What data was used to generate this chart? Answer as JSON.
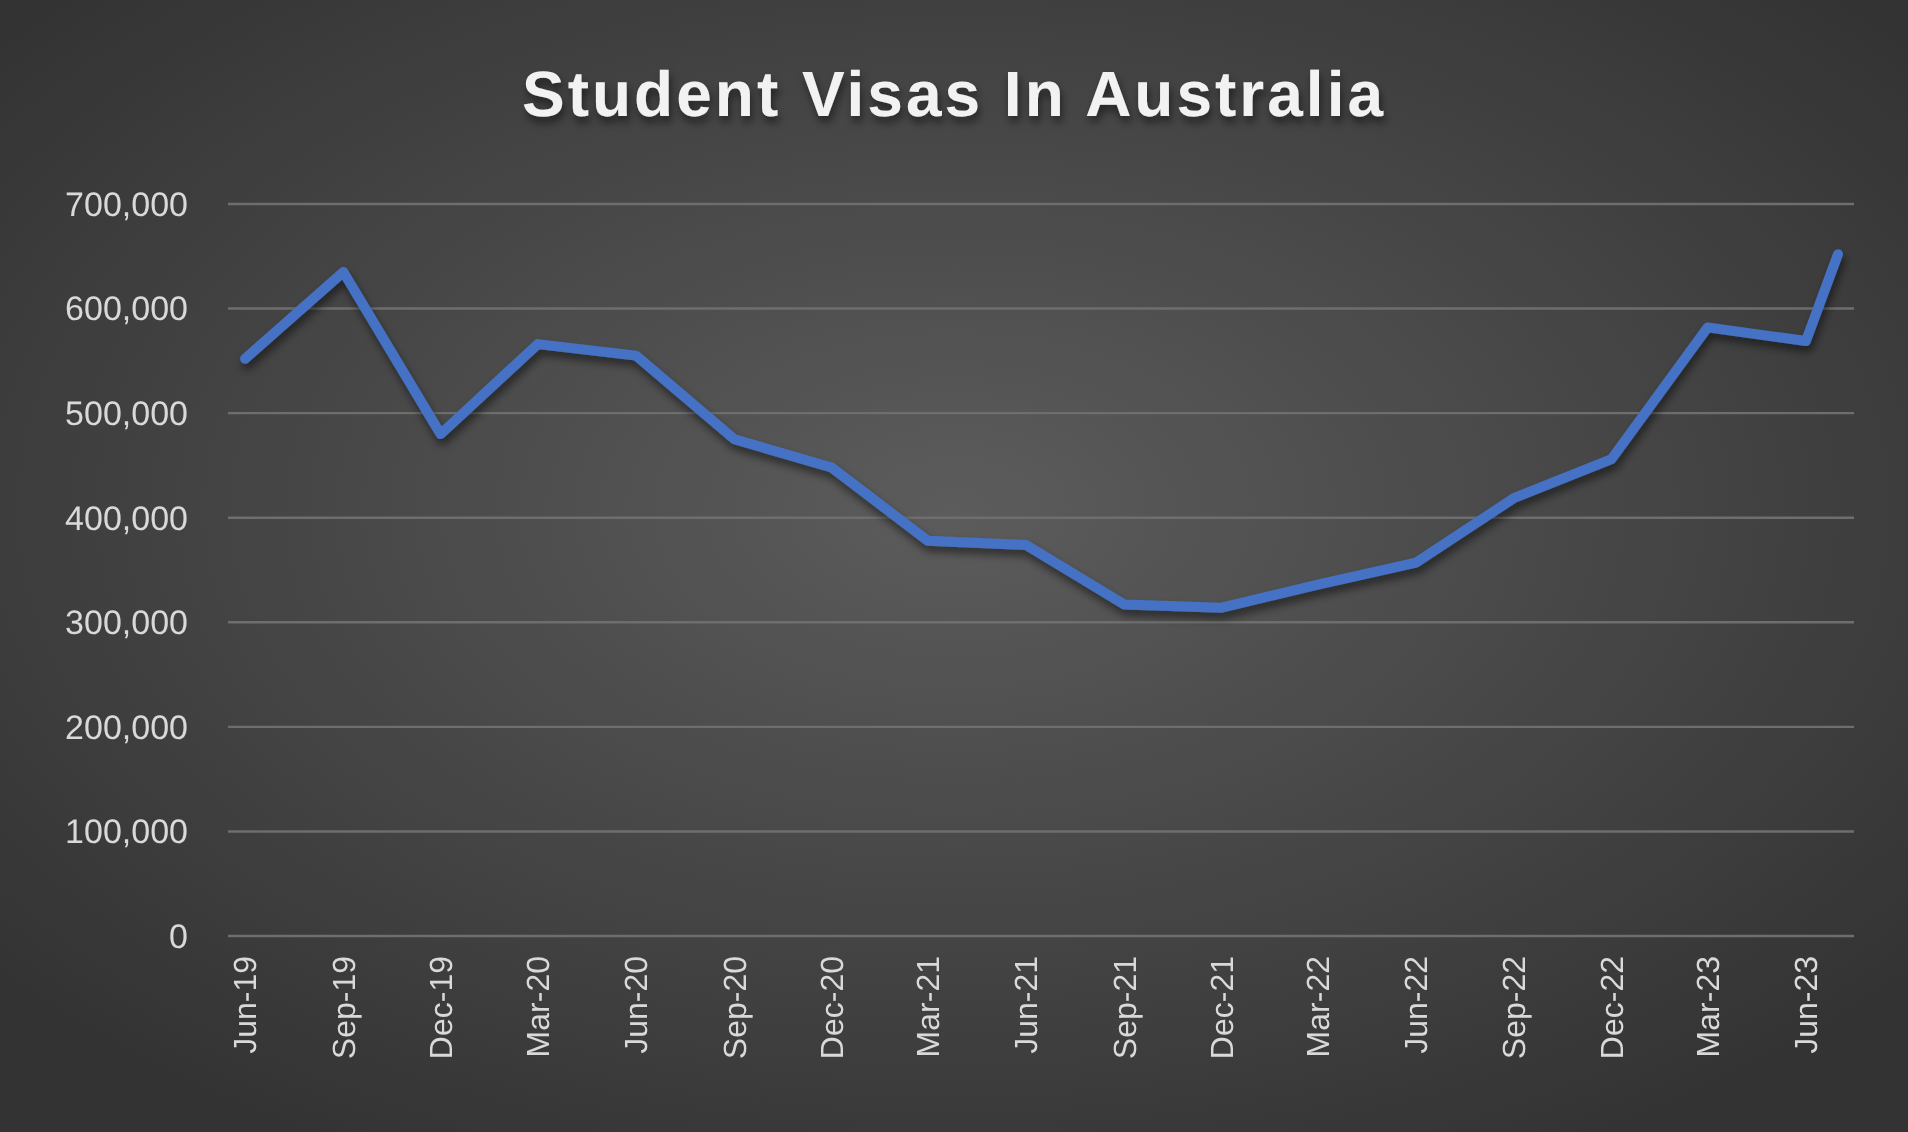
{
  "chart_data": {
    "type": "line",
    "title": "Student Visas In Australia",
    "x": [
      "2019-06",
      "2019-09",
      "2019-12",
      "2020-03",
      "2020-06",
      "2020-09",
      "2020-12",
      "2021-03",
      "2021-06",
      "2021-09",
      "2021-12",
      "2022-03",
      "2022-06",
      "2022-09",
      "2022-12",
      "2023-03",
      "2023-06",
      "2023-07"
    ],
    "series": [
      {
        "color": "#4472c4",
        "values": [
          552000,
          635000,
          480000,
          566000,
          555000,
          475000,
          448000,
          378000,
          374000,
          317000,
          314000,
          336000,
          357000,
          419000,
          456000,
          582000,
          569000,
          652000
        ]
      }
    ],
    "xlim": [
      "2019-05-16",
      "2023-07-16"
    ],
    "xticks": [
      {
        "value": "2019-06",
        "label": "Jun-19"
      },
      {
        "value": "2019-09",
        "label": "Sep-19"
      },
      {
        "value": "2019-12",
        "label": "Dec-19"
      },
      {
        "value": "2020-03",
        "label": "Mar-20"
      },
      {
        "value": "2020-06",
        "label": "Jun-20"
      },
      {
        "value": "2020-09",
        "label": "Sep-20"
      },
      {
        "value": "2020-12",
        "label": "Dec-20"
      },
      {
        "value": "2021-03",
        "label": "Mar-21"
      },
      {
        "value": "2021-06",
        "label": "Jun-21"
      },
      {
        "value": "2021-09",
        "label": "Sep-21"
      },
      {
        "value": "2021-12",
        "label": "Dec-21"
      },
      {
        "value": "2022-03",
        "label": "Mar-22"
      },
      {
        "value": "2022-06",
        "label": "Jun-22"
      },
      {
        "value": "2022-09",
        "label": "Sep-22"
      },
      {
        "value": "2022-12",
        "label": "Dec-22"
      },
      {
        "value": "2023-03",
        "label": "Mar-23"
      },
      {
        "value": "2023-06",
        "label": "Jun-23"
      }
    ],
    "ylim": [
      0,
      700000
    ],
    "yticks": [
      0,
      {
        "value": 100000,
        "label": "100,000"
      },
      {
        "value": 200000,
        "label": "200,000"
      },
      {
        "value": 300000,
        "label": "300,000"
      },
      {
        "value": 400000,
        "label": "400,000"
      },
      {
        "value": 500000,
        "label": "500,000"
      },
      {
        "value": 600000,
        "label": "600,000"
      },
      {
        "value": 700000,
        "label": "700,000"
      }
    ],
    "grid": "y",
    "marker": "none",
    "line_style": "solid"
  }
}
